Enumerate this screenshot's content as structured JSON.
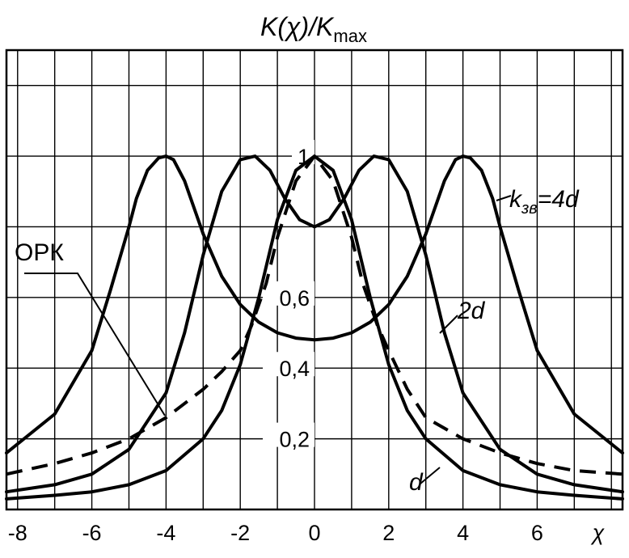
{
  "chart_data": {
    "type": "line",
    "title": "K(χ)/K",
    "title_subscript": "max",
    "xlabel": "χ",
    "ylabel": "",
    "xlim": [
      -8.3,
      8.3
    ],
    "ylim": [
      0,
      1.3
    ],
    "x_ticks": [
      "-8",
      "-6",
      "-4",
      "-2",
      "0",
      "2",
      "4",
      "6"
    ],
    "y_ticks": [
      {
        "value": 1.0,
        "label": "1"
      },
      {
        "value": 0.6,
        "label": "0,6"
      },
      {
        "value": 0.4,
        "label": "0,4"
      },
      {
        "value": 0.2,
        "label": "0,2"
      }
    ],
    "grid": true,
    "series": [
      {
        "name": "k = 4d",
        "style": "solid",
        "x": [
          -8.3,
          -7,
          -6,
          -5.5,
          -5,
          -4.8,
          -4.5,
          -4.2,
          -4,
          -3.8,
          -3.5,
          -3.2,
          -3,
          -2.5,
          -2,
          -1.5,
          -1,
          -0.5,
          0,
          0.5,
          1,
          1.5,
          2,
          2.5,
          3,
          3.2,
          3.5,
          3.8,
          4,
          4.2,
          4.5,
          4.8,
          5,
          5.5,
          6,
          7,
          8.3
        ],
        "y": [
          0.16,
          0.27,
          0.45,
          0.62,
          0.8,
          0.88,
          0.96,
          0.995,
          1.0,
          0.99,
          0.93,
          0.84,
          0.78,
          0.66,
          0.58,
          0.53,
          0.5,
          0.485,
          0.48,
          0.485,
          0.5,
          0.53,
          0.58,
          0.66,
          0.78,
          0.84,
          0.93,
          0.99,
          1.0,
          0.995,
          0.96,
          0.88,
          0.8,
          0.62,
          0.45,
          0.27,
          0.16
        ]
      },
      {
        "name": "2d",
        "style": "solid",
        "x": [
          -8.3,
          -7,
          -6,
          -5,
          -4,
          -3.5,
          -3,
          -2.5,
          -2,
          -1.6,
          -1.2,
          -0.8,
          -0.4,
          0,
          0.4,
          0.8,
          1.2,
          1.6,
          2,
          2.5,
          3,
          3.5,
          4,
          5,
          6,
          7,
          8.3
        ],
        "y": [
          0.05,
          0.07,
          0.1,
          0.17,
          0.33,
          0.5,
          0.72,
          0.9,
          0.99,
          1.0,
          0.96,
          0.88,
          0.82,
          0.8,
          0.82,
          0.88,
          0.96,
          1.0,
          0.99,
          0.9,
          0.72,
          0.5,
          0.33,
          0.17,
          0.1,
          0.07,
          0.05
        ]
      },
      {
        "name": "d",
        "style": "solid",
        "x": [
          -8.3,
          -7,
          -6,
          -5,
          -4,
          -3,
          -2.5,
          -2,
          -1.5,
          -1,
          -0.5,
          0,
          0.5,
          1,
          1.5,
          2,
          2.5,
          3,
          4,
          5,
          6,
          7,
          8.3
        ],
        "y": [
          0.03,
          0.04,
          0.05,
          0.07,
          0.11,
          0.2,
          0.28,
          0.41,
          0.6,
          0.82,
          0.96,
          1.0,
          0.96,
          0.82,
          0.6,
          0.41,
          0.28,
          0.2,
          0.11,
          0.07,
          0.05,
          0.04,
          0.03
        ]
      },
      {
        "name": "ОРК",
        "style": "dashed",
        "x": [
          -8.3,
          -7,
          -6,
          -5,
          -4,
          -3,
          -2.5,
          -2,
          -1.7,
          -1.3,
          -1,
          -0.5,
          0,
          0.5,
          1,
          1.3,
          1.7,
          2,
          2.5,
          3,
          4,
          5,
          6,
          7,
          8.3
        ],
        "y": [
          0.1,
          0.13,
          0.16,
          0.2,
          0.26,
          0.34,
          0.39,
          0.45,
          0.52,
          0.64,
          0.77,
          0.93,
          1.0,
          0.93,
          0.77,
          0.64,
          0.52,
          0.45,
          0.34,
          0.26,
          0.2,
          0.16,
          0.13,
          0.11,
          0.1
        ]
      }
    ],
    "annotations": {
      "k_base": "k",
      "k_sub": "зв",
      "k_rest": "=4d",
      "label_2d": "2d",
      "label_d": "d",
      "label_opk": "ОРК"
    }
  }
}
